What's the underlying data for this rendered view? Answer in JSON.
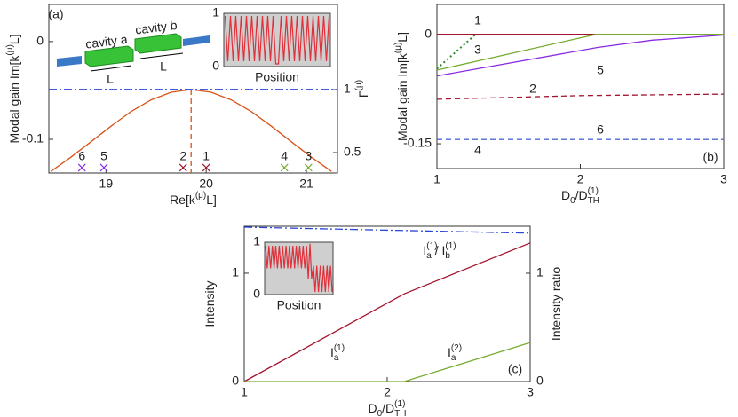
{
  "chart_data": [
    {
      "type": "line",
      "panel_label": "(a)",
      "xlabel": [
        {
          "text": "Re[k"
        },
        {
          "text": "(μ)",
          "style": "sup"
        },
        {
          "text": "L]"
        }
      ],
      "ylabel": [
        {
          "text": "Modal gain Im[k"
        },
        {
          "text": "(μ)",
          "style": "sup"
        },
        {
          "text": "L]"
        }
      ],
      "y2label": [
        {
          "text": "Γ"
        },
        {
          "text": "(μ)",
          "style": "sup"
        }
      ],
      "xlim": [
        18.43,
        21.31
      ],
      "xticks": [
        19,
        20,
        21
      ],
      "ylim": [
        -0.1345,
        0.038
      ],
      "yticks": [
        0,
        -0.1
      ],
      "y2lim": [
        0.338,
        1.676
      ],
      "y2ticks": [
        1,
        0.5
      ],
      "y2color": "#d95319",
      "series": [
        {
          "color": "#d95319",
          "axis": "y2",
          "x": [
            18.45,
            18.65,
            18.85,
            19.05,
            19.25,
            19.45,
            19.65,
            19.85,
            20.05,
            20.25,
            20.45,
            20.65,
            20.85,
            21.05,
            21.25
          ],
          "values": [
            0.351,
            0.463,
            0.586,
            0.71,
            0.825,
            0.918,
            0.979,
            1,
            0.979,
            0.918,
            0.825,
            0.71,
            0.586,
            0.463,
            0.351
          ]
        },
        {
          "color": "#2a45d6",
          "dash": "dashdot",
          "x": [
            18.43,
            21.31
          ],
          "values": [
            -0.049,
            -0.049
          ]
        },
        {
          "color": "#d95319",
          "dash": "dashed",
          "axis": "y2",
          "x": [
            19.85,
            19.85
          ],
          "values": [
            1,
            0.338
          ]
        }
      ],
      "points": [
        {
          "label": "6",
          "x": 18.76,
          "y": -0.129,
          "color": "#8a2be2"
        },
        {
          "label": "5",
          "x": 18.98,
          "y": -0.129,
          "color": "#8a2be2"
        },
        {
          "label": "2",
          "x": 19.77,
          "y": -0.129,
          "color": "#a2142f"
        },
        {
          "label": "1",
          "x": 20.0,
          "y": -0.129,
          "color": "#a2142f"
        },
        {
          "label": "4",
          "x": 20.78,
          "y": -0.129,
          "color": "#77ac30"
        },
        {
          "label": "3",
          "x": 21.02,
          "y": -0.129,
          "color": "#77ac30"
        }
      ],
      "diagram": {
        "cavity_a": "cavity a",
        "cavity_b": "cavity b",
        "length_a": "L",
        "length_b": "L"
      },
      "inset": {
        "xlabel": "Position",
        "ylim": [
          0,
          1
        ],
        "yticks": [
          0,
          1
        ],
        "color": "#e0303a",
        "values": [
          0.95,
          0.1,
          0.95,
          0.1,
          0.95,
          0.1,
          0.95,
          0.1,
          0.95,
          0.1,
          0.95,
          0.1,
          0.95,
          0.1,
          0.95,
          0.1,
          0.95,
          0.1,
          0.95,
          0.05,
          0.05,
          0.95,
          0.1,
          0.95,
          0.1,
          0.95,
          0.1,
          0.95,
          0.1,
          0.95,
          0.1,
          0.95,
          0.1,
          0.95,
          0.1,
          0.95,
          0.1,
          0.95,
          0.1,
          0.95
        ]
      }
    },
    {
      "type": "line",
      "panel_label": "(b)",
      "xlabel": [
        {
          "text": "D"
        },
        {
          "text": "0",
          "style": "sub"
        },
        {
          "text": "/D"
        },
        {
          "text": "(1)",
          "style": "sup"
        },
        {
          "text": "TH",
          "style": "sub",
          "stack": true
        }
      ],
      "ylabel": [
        {
          "text": "Modal gain Im[k"
        },
        {
          "text": "(μ)",
          "style": "sup"
        },
        {
          "text": "L]"
        }
      ],
      "xlim": [
        1,
        3
      ],
      "xticks": [
        1,
        2,
        3
      ],
      "ylim": [
        -0.184,
        0.041
      ],
      "yticks": [
        0,
        -0.15
      ],
      "series": [
        {
          "label": "1",
          "color": "#a2142f",
          "x": [
            1,
            3
          ],
          "values": [
            0,
            0
          ]
        },
        {
          "color": "#2e8b2e",
          "dash": "dotted",
          "x": [
            1,
            1.27
          ],
          "values": [
            -0.047,
            0
          ]
        },
        {
          "label": "3",
          "color": "#77ac30",
          "x": [
            1,
            2.11,
            3
          ],
          "values": [
            -0.049,
            0,
            0
          ]
        },
        {
          "label": "5",
          "color": "#8a2be2",
          "x": [
            1,
            2.12,
            2.5,
            3
          ],
          "values": [
            -0.057,
            -0.018,
            -0.008,
            -0.001
          ]
        },
        {
          "label": "2",
          "color": "#a2142f",
          "dash": "dashed",
          "x": [
            1,
            2,
            3
          ],
          "values": [
            -0.089,
            -0.084,
            -0.082
          ]
        },
        {
          "label": "6",
          "color": "#8a2be2",
          "dash": "dashed",
          "x": [
            1,
            3
          ],
          "values": [
            -0.144,
            -0.144
          ]
        },
        {
          "label": "4",
          "color": "#4a6fd8",
          "label_color": "#77ac30",
          "dash": "dashed",
          "x": [
            1,
            3
          ],
          "values": [
            -0.144,
            -0.144
          ]
        }
      ]
    },
    {
      "type": "line",
      "panel_label": "(c)",
      "xlabel": [
        {
          "text": "D"
        },
        {
          "text": "0",
          "style": "sub"
        },
        {
          "text": "/D"
        },
        {
          "text": "(1)",
          "style": "sup"
        },
        {
          "text": "TH",
          "style": "sub",
          "stack": true
        }
      ],
      "ylabel": [
        {
          "text": "Intensity"
        }
      ],
      "y2label": [
        {
          "text": "Intensity ratio"
        }
      ],
      "xlim": [
        1,
        3
      ],
      "xticks": [
        1,
        2,
        3
      ],
      "ylim": [
        0,
        1.434
      ],
      "yticks": [
        0,
        1
      ],
      "y2lim": [
        0,
        1.434
      ],
      "y2ticks": [
        0,
        1
      ],
      "y2color": "#1010e0",
      "series": [
        {
          "label": [
            {
              "text": "I"
            },
            {
              "text": "(1)",
              "style": "sup"
            },
            {
              "text": "a",
              "style": "sub",
              "stack": true
            }
          ],
          "color": "#a2142f",
          "x": [
            1,
            2.12,
            3
          ],
          "values": [
            0,
            0.81,
            1.28
          ]
        },
        {
          "label": [
            {
              "text": "I"
            },
            {
              "text": "(2)",
              "style": "sup"
            },
            {
              "text": "a",
              "style": "sub",
              "stack": true
            }
          ],
          "color": "#77ac30",
          "x": [
            1,
            2.12,
            3
          ],
          "values": [
            0,
            0,
            0.36
          ]
        },
        {
          "label": [
            {
              "text": "I"
            },
            {
              "text": "(1)",
              "style": "sup"
            },
            {
              "text": "a",
              "style": "sub",
              "stack": true
            },
            {
              "text": " / I"
            },
            {
              "text": "(1)",
              "style": "sup"
            },
            {
              "text": "b",
              "style": "sub",
              "stack": true
            }
          ],
          "color": "#2a45d6",
          "dash": "dashdot",
          "axis": "y2",
          "x": [
            1,
            3
          ],
          "values": [
            1.426,
            1.37
          ]
        }
      ],
      "inset": {
        "xlabel": "Position",
        "ylim": [
          0,
          1
        ],
        "yticks": [
          0,
          1
        ],
        "color": "#e0303a",
        "values": [
          0.93,
          0.5,
          0.93,
          0.5,
          0.93,
          0.5,
          0.93,
          0.5,
          0.93,
          0.5,
          0.93,
          0.5,
          0.93,
          0.5,
          0.93,
          0.5,
          0.93,
          0.5,
          0.93,
          0.5,
          0.93,
          0.5,
          0.93,
          0.5,
          0.93,
          0.3,
          0.97,
          0.3,
          0.55,
          0.05,
          0.55,
          0.05,
          0.55,
          0.05,
          0.55,
          0.05,
          0.55,
          0.05,
          0.55,
          0.05
        ]
      }
    }
  ]
}
